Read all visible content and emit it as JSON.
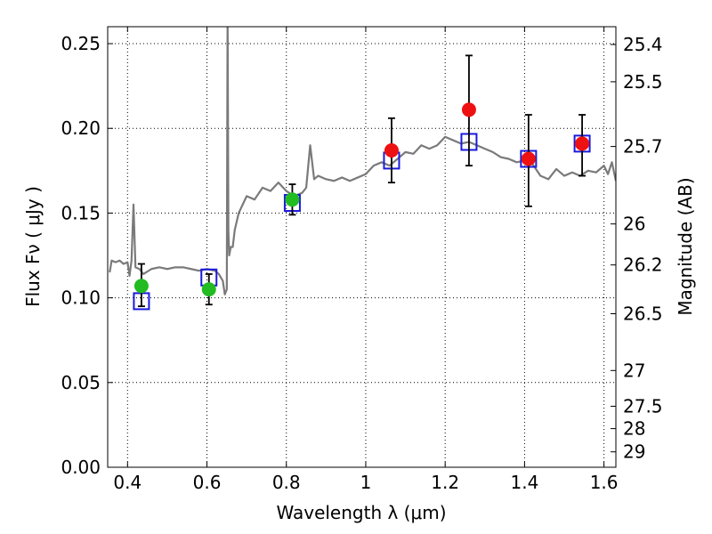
{
  "chart_data": {
    "type": "scatter",
    "xlabel": "Wavelength  λ (μm)",
    "ylabel": "Flux  Fν  ( μJy )",
    "y2label": "Magnitude (AB)",
    "xlim": [
      0.35,
      1.63
    ],
    "ylim": [
      0.0,
      0.26
    ],
    "grid": true,
    "x_ticks": [
      0.4,
      0.6,
      0.8,
      1.0,
      1.2,
      1.4,
      1.6
    ],
    "x_tick_labels": [
      "0.4",
      "0.6",
      "0.8",
      "1",
      "1.2",
      "1.4",
      "1.6"
    ],
    "y_ticks": [
      0.0,
      0.05,
      0.1,
      0.15,
      0.2,
      0.25
    ],
    "y_tick_labels": [
      "0.00",
      "0.05",
      "0.10",
      "0.15",
      "0.20",
      "0.25"
    ],
    "mag_ticks": [
      {
        "label": "25.4",
        "flux": 0.2495
      },
      {
        "label": "25.5",
        "flux": 0.2275
      },
      {
        "label": "25.7",
        "flux": 0.1893
      },
      {
        "label": "26",
        "flux": 0.1436
      },
      {
        "label": "26.2",
        "flux": 0.1194
      },
      {
        "label": "26.5",
        "flux": 0.0906
      },
      {
        "label": "27",
        "flux": 0.0571
      },
      {
        "label": "27.5",
        "flux": 0.036
      },
      {
        "label": "28",
        "flux": 0.0228
      },
      {
        "label": "29",
        "flux": 0.0091
      }
    ],
    "series": [
      {
        "kind": "model_spectrum",
        "color": "#7a7a7a",
        "x": [
          0.355,
          0.36,
          0.37,
          0.38,
          0.39,
          0.4,
          0.405,
          0.41,
          0.415,
          0.42,
          0.43,
          0.44,
          0.46,
          0.48,
          0.5,
          0.52,
          0.54,
          0.56,
          0.58,
          0.6,
          0.62,
          0.63,
          0.64,
          0.645,
          0.65,
          0.652,
          0.654,
          0.656,
          0.66,
          0.665,
          0.67,
          0.68,
          0.69,
          0.7,
          0.72,
          0.74,
          0.76,
          0.78,
          0.8,
          0.82,
          0.84,
          0.85,
          0.86,
          0.87,
          0.88,
          0.9,
          0.92,
          0.94,
          0.96,
          0.98,
          1.0,
          1.02,
          1.04,
          1.06,
          1.08,
          1.1,
          1.12,
          1.14,
          1.16,
          1.18,
          1.2,
          1.22,
          1.24,
          1.26,
          1.28,
          1.3,
          1.32,
          1.34,
          1.36,
          1.38,
          1.4,
          1.42,
          1.44,
          1.46,
          1.48,
          1.5,
          1.52,
          1.54,
          1.56,
          1.58,
          1.6,
          1.61,
          1.62,
          1.63
        ],
        "y": [
          0.115,
          0.122,
          0.121,
          0.122,
          0.12,
          0.121,
          0.113,
          0.122,
          0.155,
          0.118,
          0.117,
          0.114,
          0.117,
          0.118,
          0.117,
          0.118,
          0.118,
          0.117,
          0.116,
          0.117,
          0.116,
          0.114,
          0.11,
          0.102,
          0.105,
          0.27,
          0.14,
          0.125,
          0.13,
          0.13,
          0.14,
          0.15,
          0.155,
          0.16,
          0.158,
          0.165,
          0.163,
          0.168,
          0.163,
          0.16,
          0.162,
          0.165,
          0.19,
          0.17,
          0.172,
          0.17,
          0.169,
          0.171,
          0.169,
          0.171,
          0.173,
          0.178,
          0.18,
          0.178,
          0.182,
          0.186,
          0.185,
          0.19,
          0.188,
          0.19,
          0.195,
          0.193,
          0.191,
          0.192,
          0.19,
          0.188,
          0.186,
          0.183,
          0.182,
          0.18,
          0.181,
          0.179,
          0.172,
          0.17,
          0.176,
          0.172,
          0.174,
          0.172,
          0.175,
          0.174,
          0.178,
          0.173,
          0.18,
          0.169
        ]
      },
      {
        "kind": "model_points",
        "color": "#1a1adc",
        "x": [
          0.435,
          0.605,
          0.815,
          1.065,
          1.26,
          1.41,
          1.545
        ],
        "y": [
          0.098,
          0.112,
          0.156,
          0.181,
          0.192,
          0.182,
          0.191
        ]
      },
      {
        "kind": "observed",
        "color": "#22bb22",
        "x": [
          0.435,
          0.605,
          0.815
        ],
        "y": [
          0.107,
          0.105,
          0.158
        ],
        "yerr_low": [
          0.012,
          0.009,
          0.009
        ],
        "yerr_high": [
          0.013,
          0.009,
          0.009
        ]
      },
      {
        "kind": "observed",
        "color": "#ee1111",
        "x": [
          1.065,
          1.26,
          1.41,
          1.545
        ],
        "y": [
          0.187,
          0.211,
          0.182,
          0.191
        ],
        "yerr_low": [
          0.019,
          0.033,
          0.028,
          0.019
        ],
        "yerr_high": [
          0.019,
          0.032,
          0.026,
          0.017
        ]
      }
    ]
  }
}
